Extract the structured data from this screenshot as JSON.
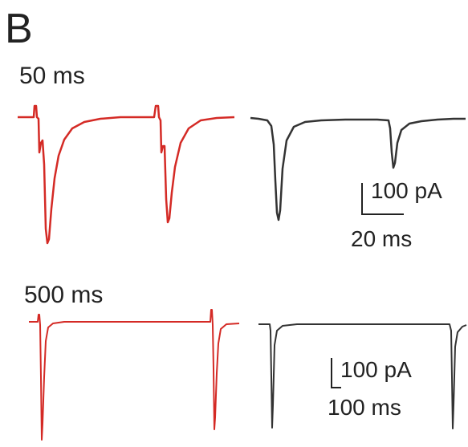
{
  "panel": {
    "letter": "B",
    "colors": {
      "red_trace": "#d42a25",
      "black_trace": "#333333",
      "scale_bar": "#222222"
    }
  },
  "top_row": {
    "interval_label": "50 ms",
    "scale_bar": {
      "current_label": "100 pA",
      "time_label": "20 ms"
    }
  },
  "bottom_row": {
    "interval_label": "500 ms",
    "scale_bar": {
      "current_label": "100 pA",
      "time_label": "100 ms"
    }
  }
}
